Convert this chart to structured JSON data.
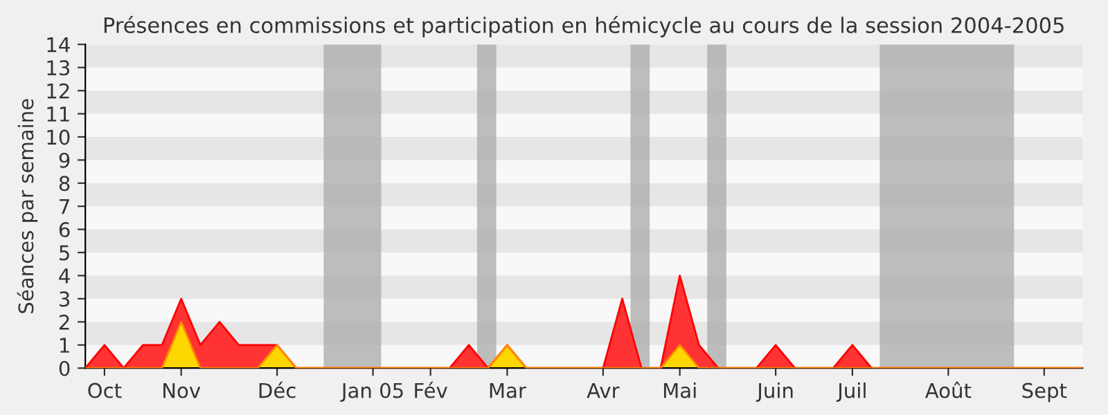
{
  "chart_data": {
    "type": "area",
    "title": "Présences en commissions et participation en hémicycle au cours de la session 2004-2005",
    "ylabel": "Séances par semaine",
    "x": [
      "2004-09-30",
      "2004-10-07",
      "2004-10-14",
      "2004-10-21",
      "2004-10-28",
      "2004-11-04",
      "2004-11-11",
      "2004-11-18",
      "2004-11-25",
      "2004-12-02",
      "2004-12-09",
      "2004-12-16",
      "2004-12-23",
      "2004-12-30",
      "2005-01-06",
      "2005-01-13",
      "2005-01-20",
      "2005-01-27",
      "2005-02-03",
      "2005-02-10",
      "2005-02-17",
      "2005-02-24",
      "2005-03-03",
      "2005-03-10",
      "2005-03-17",
      "2005-03-24",
      "2005-03-31",
      "2005-04-07",
      "2005-04-14",
      "2005-04-21",
      "2005-04-28",
      "2005-05-05",
      "2005-05-12",
      "2005-05-19",
      "2005-05-26",
      "2005-06-02",
      "2005-06-09",
      "2005-06-16",
      "2005-06-23",
      "2005-06-30",
      "2005-07-07",
      "2005-07-14",
      "2005-07-21",
      "2005-07-28",
      "2005-08-04",
      "2005-08-11",
      "2005-08-18",
      "2005-08-25",
      "2005-09-01",
      "2005-09-08",
      "2005-09-15",
      "2005-09-22",
      "2005-09-29"
    ],
    "series": [
      {
        "color": "#ff3333",
        "values": [
          0,
          1,
          0,
          1,
          1,
          3,
          1,
          2,
          1,
          1,
          1,
          0,
          0,
          0,
          0,
          0,
          0,
          0,
          0,
          0,
          1,
          0,
          1,
          0,
          0,
          0,
          0,
          0,
          3,
          0,
          0,
          4,
          1,
          0,
          0,
          0,
          1,
          0,
          0,
          0,
          1,
          0,
          0,
          0,
          0,
          0,
          0,
          0,
          0,
          0,
          0,
          0,
          0
        ]
      },
      {
        "color": "#ffd700",
        "values": [
          0,
          0,
          0,
          0,
          0,
          2,
          0,
          0,
          0,
          0,
          1,
          0,
          0,
          0,
          0,
          0,
          0,
          0,
          0,
          0,
          0,
          0,
          1,
          0,
          0,
          0,
          0,
          0,
          0,
          0,
          0,
          1,
          0,
          0,
          0,
          0,
          0,
          0,
          0,
          0,
          0,
          0,
          0,
          0,
          0,
          0,
          0,
          0,
          0,
          0,
          0,
          0,
          0
        ]
      }
    ],
    "xlim": [
      "2004-09-30",
      "2005-09-29"
    ],
    "xticks": [
      {
        "value": "2004-10-07",
        "label": "Oct"
      },
      {
        "value": "2004-11-04",
        "label": "Nov"
      },
      {
        "value": "2004-12-09",
        "label": "Déc"
      },
      {
        "value": "2005-01-13",
        "label": "Jan 05"
      },
      {
        "value": "2005-02-03",
        "label": "Fév"
      },
      {
        "value": "2005-03-03",
        "label": "Mar"
      },
      {
        "value": "2005-04-07",
        "label": "Avr"
      },
      {
        "value": "2005-05-05",
        "label": "Mai"
      },
      {
        "value": "2005-06-09",
        "label": "Juin"
      },
      {
        "value": "2005-07-07",
        "label": "Juil"
      },
      {
        "value": "2005-08-11",
        "label": "Août"
      },
      {
        "value": "2005-09-15",
        "label": "Sept"
      }
    ],
    "ylim": [
      0,
      14
    ],
    "yticks": [
      0,
      1,
      2,
      3,
      4,
      5,
      6,
      7,
      8,
      9,
      10,
      11,
      12,
      13,
      14
    ],
    "bands": [
      {
        "axis": "x",
        "from": "2004-12-26",
        "to": "2005-01-16",
        "color": "#aaaaaa"
      },
      {
        "axis": "x",
        "from": "2005-02-20",
        "to": "2005-02-27",
        "color": "#aaaaaa"
      },
      {
        "axis": "x",
        "from": "2005-04-17",
        "to": "2005-04-24",
        "color": "#aaaaaa"
      },
      {
        "axis": "x",
        "from": "2005-05-15",
        "to": "2005-05-22",
        "color": "#aaaaaa"
      },
      {
        "axis": "x",
        "from": "2005-07-17",
        "to": "2005-09-04",
        "color": "#aaaaaa"
      }
    ]
  }
}
